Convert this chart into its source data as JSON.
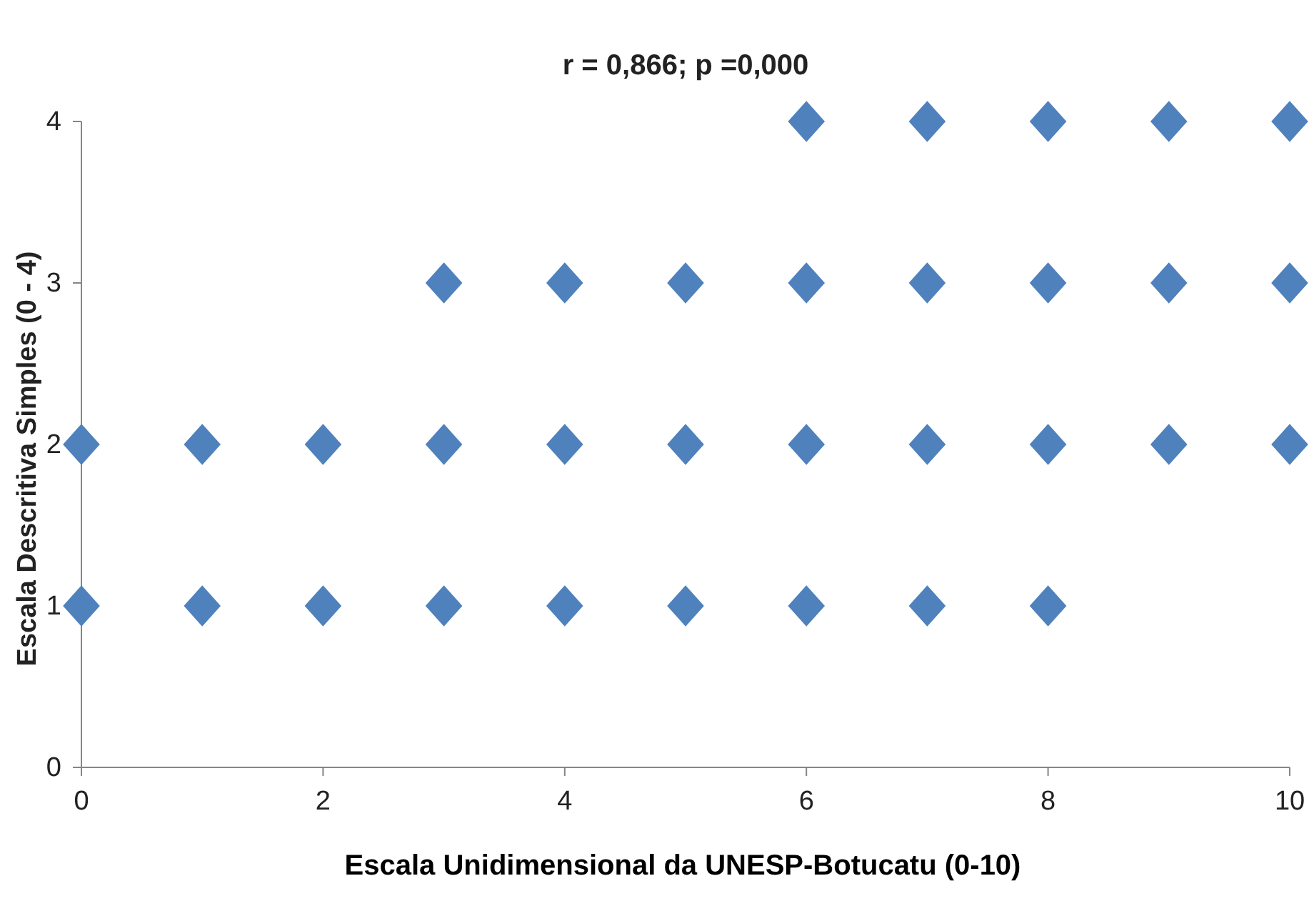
{
  "chart_data": {
    "type": "scatter",
    "title": "r = 0,866; p =0,000",
    "xlabel": "Escala Unidimensional da UNESP-Botucatu (0-10)",
    "ylabel": "Escala Descritiva Simples (0 - 4)",
    "x": [
      0,
      1,
      2,
      3,
      4,
      5,
      6,
      7,
      8,
      0,
      1,
      2,
      3,
      4,
      5,
      6,
      7,
      8,
      9,
      10,
      3,
      4,
      5,
      6,
      7,
      8,
      9,
      10,
      6,
      7,
      8,
      9,
      10
    ],
    "values": [
      1,
      1,
      1,
      1,
      1,
      1,
      1,
      1,
      1,
      2,
      2,
      2,
      2,
      2,
      2,
      2,
      2,
      2,
      2,
      2,
      3,
      3,
      3,
      3,
      3,
      3,
      3,
      3,
      4,
      4,
      4,
      4,
      4
    ],
    "color": "#4f81bd",
    "marker": "diamond",
    "xlim": [
      0,
      10
    ],
    "xticks": [
      0,
      2,
      4,
      6,
      8,
      10
    ],
    "ylim": [
      0,
      4
    ],
    "yticks": [
      0,
      1,
      2,
      3,
      4
    ],
    "grid": false
  }
}
